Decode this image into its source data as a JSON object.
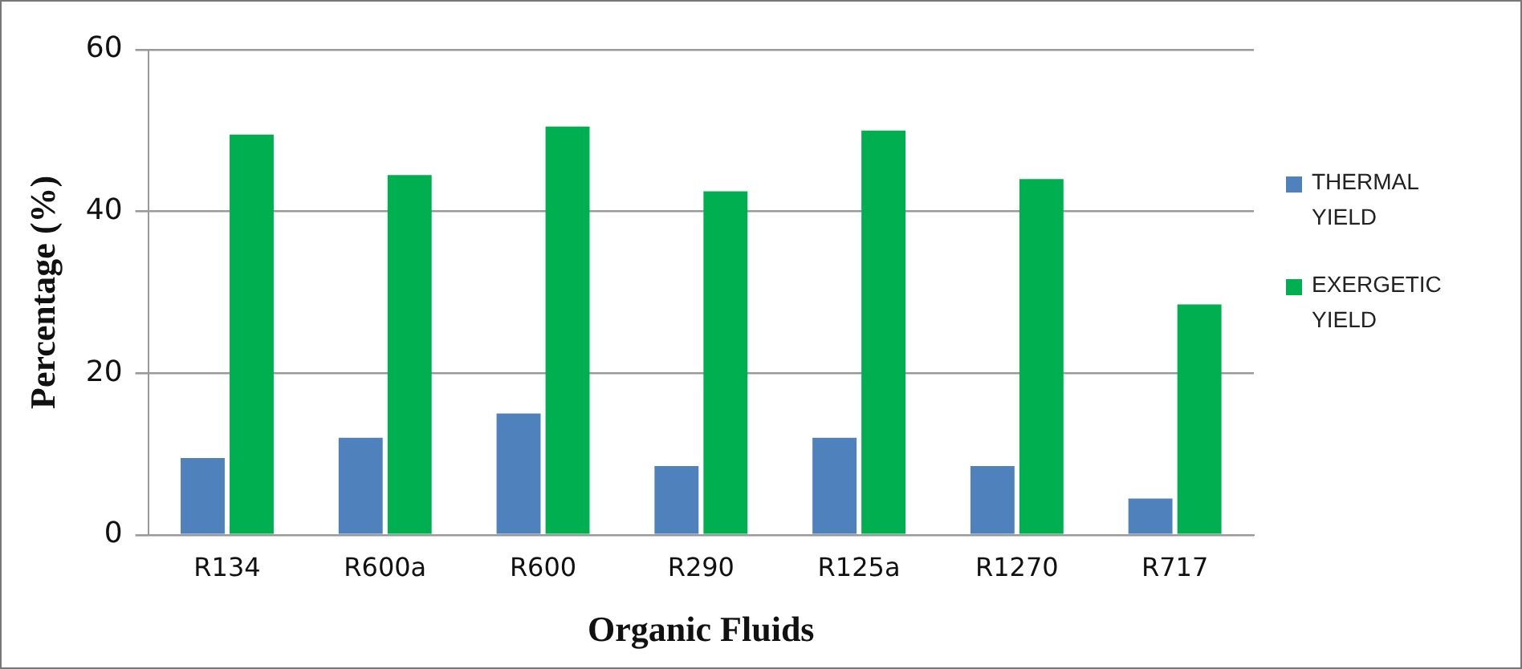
{
  "chart_data": {
    "type": "bar",
    "xlabel": "Organic Fluids",
    "ylabel": "Percentage (%)",
    "categories": [
      "R134",
      "R600a",
      "R600",
      "R290",
      "R125a",
      "R1270",
      "R717"
    ],
    "series": [
      {
        "name": "THERMAL YIELD",
        "color": "#4f81bd",
        "values": [
          9.5,
          12,
          15,
          8.5,
          12,
          8.5,
          4.5
        ]
      },
      {
        "name": "EXERGETIC YIELD",
        "color": "#00b050",
        "values": [
          49.5,
          44.5,
          50.5,
          42.5,
          50,
          44,
          28.5
        ]
      }
    ],
    "ylim": [
      0,
      60
    ],
    "yticks": [
      0,
      20,
      40,
      60
    ],
    "grid": "y",
    "legend": "right"
  }
}
